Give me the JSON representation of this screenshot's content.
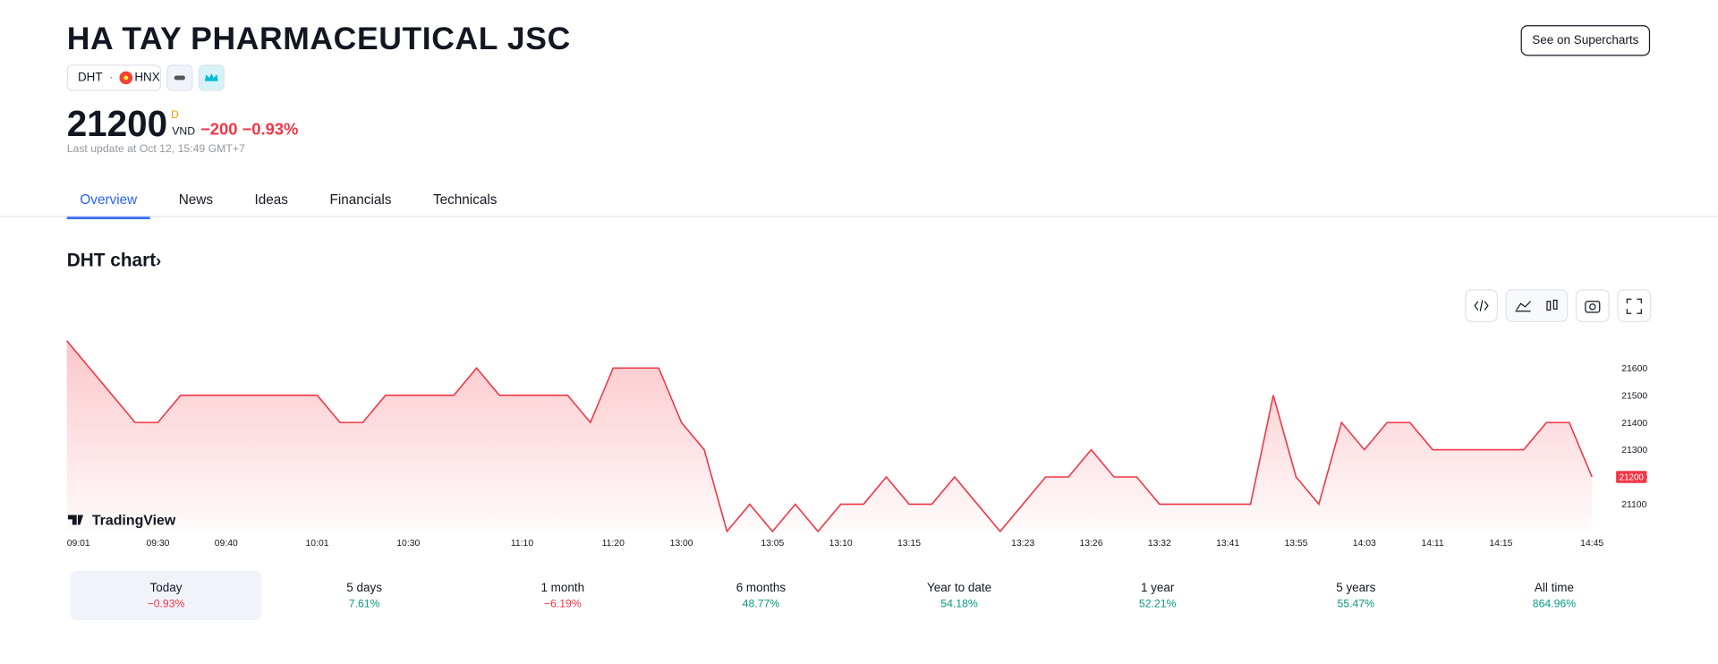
{
  "header": {
    "title": "HA TAY PHARMACEUTICAL JSC",
    "ticker": "DHT",
    "exchange": "HNX",
    "price": "21200",
    "currency_flag": "D",
    "currency": "VND",
    "change": "−200",
    "change_pct": "−0.93%",
    "last_update": "Last update at Oct 12, 15:49 GMT+7",
    "button": "See on Supercharts"
  },
  "tabs": [
    "Overview",
    "News",
    "Ideas",
    "Financials",
    "Technicals"
  ],
  "section_title": "DHT chart",
  "chart_data": {
    "type": "area",
    "watermark": "TradingView",
    "color": "#f23645",
    "categories": [
      "09:01",
      null,
      null,
      null,
      "09:30",
      null,
      null,
      "09:40",
      null,
      null,
      null,
      "10:01",
      null,
      null,
      null,
      "10:30",
      null,
      null,
      null,
      null,
      "11:10",
      null,
      null,
      null,
      "11:20",
      null,
      null,
      "13:00",
      null,
      null,
      null,
      "13:05",
      null,
      null,
      "13:10",
      null,
      null,
      "13:15",
      null,
      null,
      null,
      null,
      "13:23",
      null,
      null,
      "13:26",
      null,
      null,
      "13:32",
      null,
      null,
      "13:41",
      null,
      null,
      "13:55",
      null,
      null,
      "14:03",
      null,
      null,
      "14:11",
      null,
      null,
      "14:15",
      null,
      null,
      null,
      "14:45"
    ],
    "values": [
      21700,
      21600,
      21500,
      21400,
      21400,
      21500,
      21500,
      21500,
      21500,
      21500,
      21500,
      21500,
      21400,
      21400,
      21500,
      21500,
      21500,
      21500,
      21600,
      21500,
      21500,
      21500,
      21500,
      21400,
      21600,
      21600,
      21600,
      21400,
      21300,
      21000,
      21100,
      21000,
      21100,
      21000,
      21100,
      21100,
      21200,
      21100,
      21100,
      21200,
      21100,
      21000,
      21100,
      21200,
      21200,
      21300,
      21200,
      21200,
      21100,
      21100,
      21100,
      21100,
      21100,
      21500,
      21200,
      21100,
      21400,
      21300,
      21400,
      21400,
      21300,
      21300,
      21300,
      21300,
      21300,
      21400,
      21400,
      21200
    ],
    "ylim": [
      21000,
      21700
    ],
    "yticks": [
      21100,
      21200,
      21300,
      21400,
      21500,
      21600
    ]
  },
  "periods": [
    {
      "name": "Today",
      "change": "−0.93%"
    },
    {
      "name": "5 days",
      "change": "7.61%"
    },
    {
      "name": "1 month",
      "change": "−6.19%"
    },
    {
      "name": "6 months",
      "change": "48.77%"
    },
    {
      "name": "Year to date",
      "change": "54.18%"
    },
    {
      "name": "1 year",
      "change": "52.21%"
    },
    {
      "name": "5 years",
      "change": "55.47%"
    },
    {
      "name": "All time",
      "change": "864.96%"
    }
  ]
}
